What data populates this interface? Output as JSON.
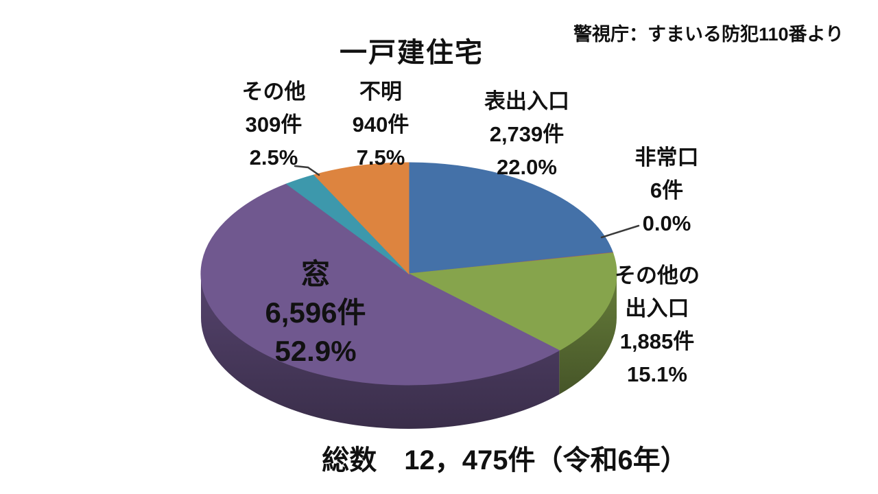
{
  "header": {
    "title": "一戸建住宅",
    "source": "警視庁：すまいる防犯110番より"
  },
  "footer": {
    "total_label": "総数　12，475件（令和6年）"
  },
  "chart_data": {
    "type": "pie",
    "style": "3d",
    "title": "一戸建住宅",
    "source": "警視庁：すまいる防犯110番より",
    "unit": "件",
    "total": {
      "value": 12475,
      "label": "総数　12，475件（令和6年）",
      "era": "令和6年"
    },
    "legend_position": "none",
    "start_angle_deg": 0,
    "direction": "clockwise",
    "slices": [
      {
        "name": "表出入口",
        "value": 2739,
        "pct": 22.0,
        "color": "#4471A8",
        "label_lines": [
          "表出入口",
          "2,739件",
          "22.0%"
        ]
      },
      {
        "name": "非常口",
        "value": 6,
        "pct": 0.0,
        "color": "#C0504D",
        "label_lines": [
          "非常口",
          "6件",
          "0.0%"
        ]
      },
      {
        "name": "その他の出入口",
        "value": 1885,
        "pct": 15.1,
        "color": "#86A44C",
        "label_lines": [
          "その他の",
          "出入口",
          "1,885件",
          "15.1%"
        ]
      },
      {
        "name": "窓",
        "value": 6596,
        "pct": 52.9,
        "color": "#70588F",
        "label_lines": [
          "窓",
          "6,596件",
          "52.9%"
        ]
      },
      {
        "name": "その他",
        "value": 309,
        "pct": 2.5,
        "color": "#3D98AC",
        "label_lines": [
          "その他",
          "309件",
          "2.5%"
        ]
      },
      {
        "name": "不明",
        "value": 940,
        "pct": 7.5,
        "color": "#DD843F",
        "label_lines": [
          "不明",
          "940件",
          "7.5%"
        ]
      }
    ]
  }
}
